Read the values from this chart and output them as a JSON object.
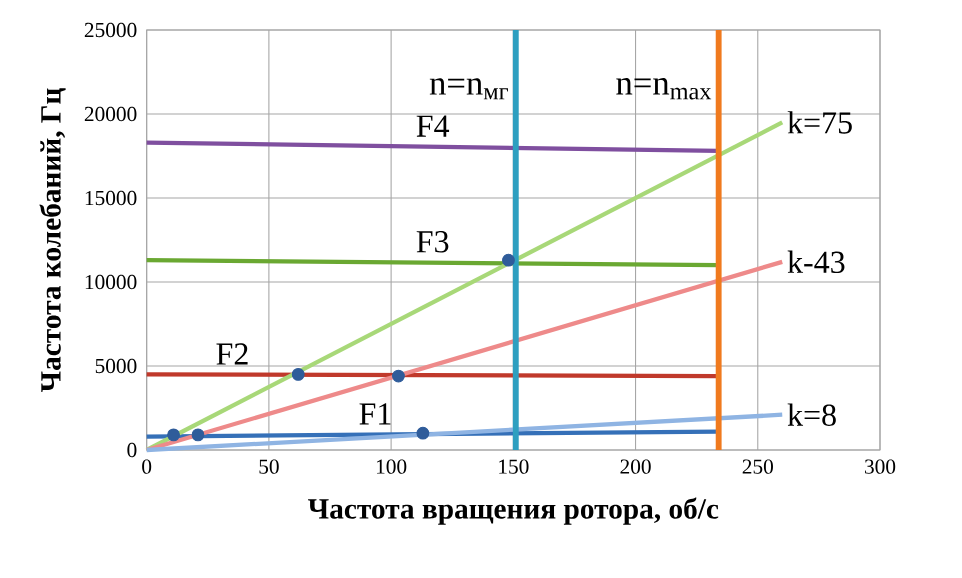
{
  "chart_data": {
    "type": "line",
    "xlabel": "Частота вращения ротора, об/с",
    "ylabel": "Частота колебаний, Гц",
    "xlim": [
      0,
      300
    ],
    "xticks": [
      0,
      50,
      100,
      150,
      200,
      250,
      300
    ],
    "ylim": [
      0,
      25000
    ],
    "yticks": [
      0,
      5000,
      10000,
      15000,
      20000,
      25000
    ],
    "grid": true,
    "series": [
      {
        "name": "F4",
        "color": "#7f4f9f",
        "x": [
          0,
          234
        ],
        "values": [
          18300,
          17800
        ]
      },
      {
        "name": "F3",
        "color": "#6aa832",
        "x": [
          0,
          234
        ],
        "values": [
          11300,
          11000
        ]
      },
      {
        "name": "F2",
        "color": "#c0392b",
        "x": [
          0,
          234
        ],
        "values": [
          4500,
          4400
        ]
      },
      {
        "name": "F1",
        "color": "#3570b8",
        "x": [
          0,
          234
        ],
        "values": [
          800,
          1100
        ]
      },
      {
        "name": "k=75",
        "color": "#a8d878",
        "x": [
          0,
          260
        ],
        "values": [
          0,
          19500
        ]
      },
      {
        "name": "k-43",
        "color": "#ee8a8a",
        "x": [
          0,
          260
        ],
        "values": [
          0,
          11200
        ]
      },
      {
        "name": "k=8",
        "color": "#8fb4e3",
        "x": [
          0,
          260
        ],
        "values": [
          0,
          2100
        ]
      },
      {
        "type": "scatter",
        "marker": "circle",
        "color": "#2f5c9a",
        "x": [
          11,
          21,
          62,
          103,
          113,
          148
        ],
        "values": [
          900,
          900,
          4500,
          4400,
          1000,
          11300
        ]
      }
    ],
    "ref_lines": [
      {
        "axis": "x",
        "value": 151,
        "label": "n=n$_{мг}$",
        "color": "#2e9fc0"
      },
      {
        "axis": "x",
        "value": 234,
        "label": "n=n$_{max}$",
        "color": "#f07a1e"
      }
    ]
  }
}
